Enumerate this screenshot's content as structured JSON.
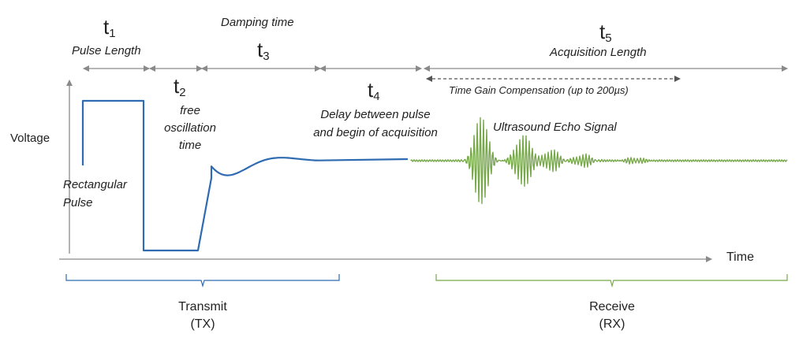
{
  "labels": {
    "t1_sym": "t",
    "t1_sub": "1",
    "t1_name": "Pulse Length",
    "t2_sym": "t",
    "t2_sub": "2",
    "t2_name_l1": "free",
    "t2_name_l2": "oscillation",
    "t2_name_l3": "time",
    "t3_sym": "t",
    "t3_sub": "3",
    "t3_name": "Damping time",
    "t4_sym": "t",
    "t4_sub": "4",
    "t4_name_l1": "Delay between pulse",
    "t4_name_l2": "and begin of acquisition",
    "t5_sym": "t",
    "t5_sub": "5",
    "t5_name": "Acquisition Length",
    "tgc": "Time Gain Compensation (up to 200µs)",
    "voltage": "Voltage",
    "time": "Time",
    "rect_pulse_l1": "Rectangular",
    "rect_pulse_l2": "Pulse",
    "echo": "Ultrasound Echo Signal",
    "transmit_l1": "Transmit",
    "transmit_l2": "(TX)",
    "receive_l1": "Receive",
    "receive_l2": "(RX)"
  },
  "colors": {
    "tx_signal": "#2e6bb0",
    "rx_signal": "#77a84a",
    "axis": "#8a8a8a",
    "text": "#222222"
  }
}
